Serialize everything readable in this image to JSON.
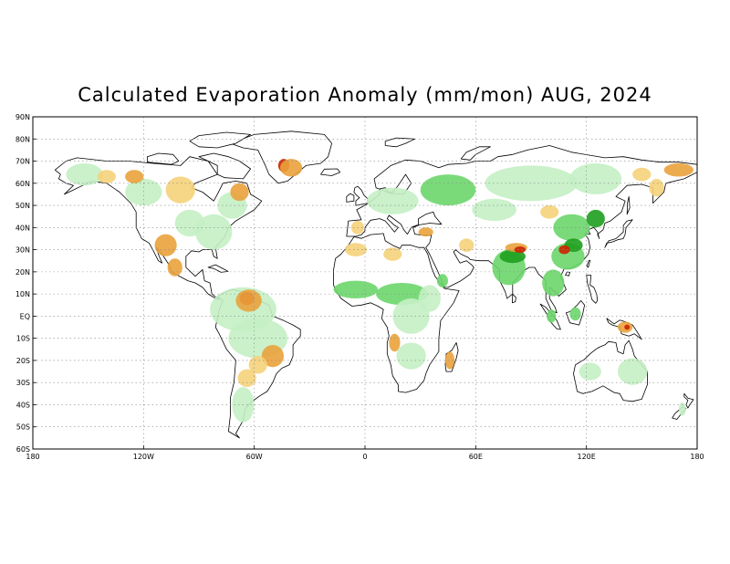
{
  "title": "Calculated Evaporation Anomaly (mm/mon) AUG, 2024",
  "lat_labels": [
    "90N",
    "80N",
    "70N",
    "60N",
    "50N",
    "40N",
    "30N",
    "20N",
    "10N",
    "EQ",
    "10S",
    "20S",
    "30S",
    "40S",
    "50S",
    "60S"
  ],
  "lon_labels": [
    "180",
    "120W",
    "60W",
    "0",
    "60E",
    "120E",
    "180"
  ],
  "colors": {
    "high_positive": "#1e9e1e",
    "positive": "#6cd66c",
    "weak_positive": "#c4f0c4",
    "weak_negative": "#f5d27a",
    "negative": "#eaa23c",
    "high_negative": "#cc2200",
    "coastline": "#000000",
    "grid": "#888888"
  },
  "grid": "dotted",
  "extent": {
    "lon": [
      -180,
      180
    ],
    "lat": [
      -60,
      90
    ]
  }
}
